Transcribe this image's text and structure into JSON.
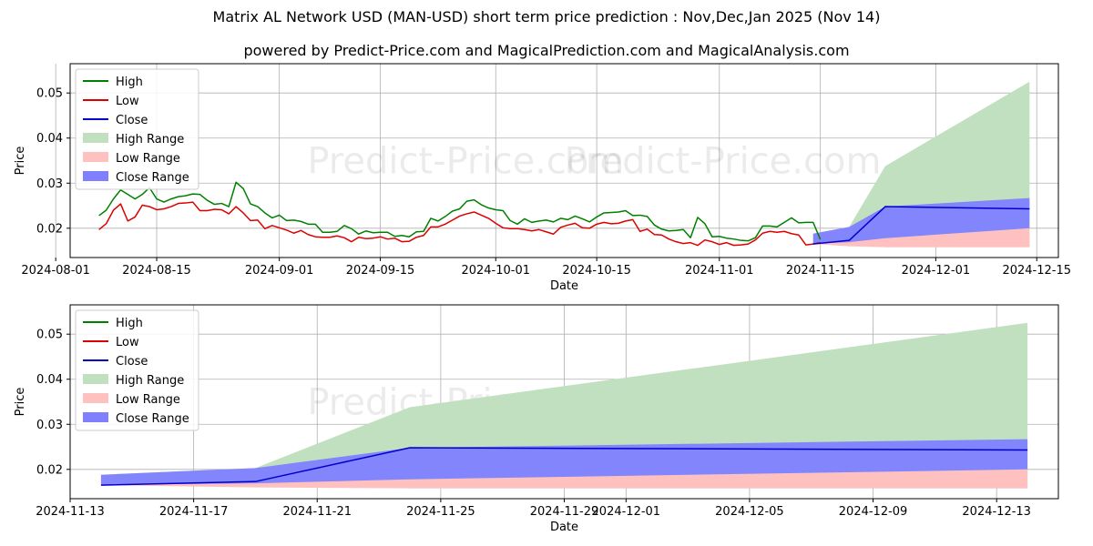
{
  "title": "Matrix AL Network USD (MAN-USD) short term price prediction : Nov,Dec,Jan 2025 (Nov 14)",
  "subtitle": "powered by Predict-Price.com and MagicalPrediction.com and MagicalAnalysis.com",
  "watermark": "Predict-Price.com",
  "colors": {
    "high": "#008000",
    "low": "#dd0000",
    "close": "#0000cc",
    "high_range": "#c0e0c0",
    "low_range": "#ffc0c0",
    "close_range": "#8080ff"
  },
  "chart_data": [
    {
      "type": "line",
      "xlabel": "Date",
      "ylabel": "Price",
      "x_range": [
        "2024-08-03",
        "2024-12-18"
      ],
      "ylim": [
        0.0135,
        0.0565
      ],
      "x_ticks": [
        "2024-08-01",
        "2024-08-15",
        "2024-09-01",
        "2024-09-15",
        "2024-10-01",
        "2024-10-15",
        "2024-11-01",
        "2024-11-15",
        "2024-12-01",
        "2024-12-15"
      ],
      "y_ticks": [
        0.02,
        0.03,
        0.04,
        0.05
      ],
      "y_tick_labels": [
        "0.02",
        "0.03",
        "0.04",
        "0.05"
      ],
      "grid": true,
      "legend": [
        "High",
        "Low",
        "Close",
        "High Range",
        "Low Range",
        "Close Range"
      ],
      "legend_location": "top-left",
      "history_start": "2024-08-07",
      "high": [
        0.0228,
        0.024,
        0.0265,
        0.0285,
        0.0275,
        0.0265,
        0.0275,
        0.029,
        0.0265,
        0.0258,
        0.0265,
        0.027,
        0.0272,
        0.0276,
        0.0275,
        0.0262,
        0.0253,
        0.0255,
        0.0248,
        0.0302,
        0.0288,
        0.0254,
        0.0248,
        0.0234,
        0.0223,
        0.0229,
        0.0217,
        0.0218,
        0.0215,
        0.0209,
        0.0209,
        0.0191,
        0.0191,
        0.0193,
        0.0206,
        0.0199,
        0.0187,
        0.0194,
        0.019,
        0.0191,
        0.0191,
        0.0182,
        0.0184,
        0.0181,
        0.0192,
        0.0193,
        0.0222,
        0.0216,
        0.0226,
        0.0238,
        0.0243,
        0.026,
        0.0263,
        0.0252,
        0.0245,
        0.0241,
        0.0239,
        0.0217,
        0.0209,
        0.0221,
        0.0213,
        0.0216,
        0.0218,
        0.0214,
        0.0222,
        0.0219,
        0.0227,
        0.0221,
        0.0214,
        0.0225,
        0.0234,
        0.0235,
        0.0236,
        0.0239,
        0.0228,
        0.0229,
        0.0226,
        0.0207,
        0.0198,
        0.0194,
        0.0195,
        0.0197,
        0.0179,
        0.0224,
        0.021,
        0.0181,
        0.0182,
        0.0178,
        0.0176,
        0.0173,
        0.0172,
        0.0179,
        0.0205,
        0.0205,
        0.0203,
        0.0213,
        0.0223,
        0.0212,
        0.0213,
        0.0213,
        0.0175
      ],
      "low": [
        0.0197,
        0.021,
        0.024,
        0.0254,
        0.0216,
        0.0225,
        0.0251,
        0.0248,
        0.0241,
        0.0243,
        0.0248,
        0.0255,
        0.0256,
        0.0258,
        0.0239,
        0.0239,
        0.0242,
        0.0241,
        0.0232,
        0.0248,
        0.0234,
        0.0217,
        0.0218,
        0.0199,
        0.0206,
        0.0201,
        0.0196,
        0.0189,
        0.0195,
        0.0186,
        0.0181,
        0.018,
        0.018,
        0.0183,
        0.0179,
        0.017,
        0.018,
        0.0177,
        0.0178,
        0.0181,
        0.0176,
        0.0178,
        0.017,
        0.0171,
        0.018,
        0.0184,
        0.0203,
        0.0203,
        0.0209,
        0.0218,
        0.0227,
        0.0232,
        0.0236,
        0.0229,
        0.0222,
        0.0211,
        0.0201,
        0.0199,
        0.0199,
        0.0197,
        0.0194,
        0.0197,
        0.0192,
        0.0187,
        0.0202,
        0.0207,
        0.0211,
        0.0201,
        0.02,
        0.0209,
        0.0213,
        0.021,
        0.0211,
        0.0216,
        0.0219,
        0.0193,
        0.0198,
        0.0186,
        0.0185,
        0.0176,
        0.017,
        0.0166,
        0.0168,
        0.0162,
        0.0174,
        0.017,
        0.0164,
        0.0168,
        0.0162,
        0.0163,
        0.0165,
        0.0174,
        0.0189,
        0.0193,
        0.0191,
        0.0193,
        0.0188,
        0.0185,
        0.0163,
        0.0165,
        0.0168
      ],
      "close_history_dates": [
        "2024-11-14",
        "2024-11-19",
        "2024-11-24",
        "2024-12-14"
      ],
      "close_history": [
        0.0165,
        0.0173,
        0.0248,
        0.0243
      ]
    },
    {
      "type": "area",
      "xlabel": "Date",
      "ylabel": "Price",
      "x_range": [
        "2024-11-13",
        "2024-12-15"
      ],
      "ylim": [
        0.0135,
        0.0565
      ],
      "x_ticks": [
        "2024-11-13",
        "2024-11-17",
        "2024-11-21",
        "2024-11-25",
        "2024-11-29",
        "2024-12-01",
        "2024-12-05",
        "2024-12-09",
        "2024-12-13"
      ],
      "y_ticks": [
        0.02,
        0.03,
        0.04,
        0.05
      ],
      "y_tick_labels": [
        "0.02",
        "0.03",
        "0.04",
        "0.05"
      ],
      "grid": true,
      "legend": [
        "High",
        "Low",
        "Close",
        "High Range",
        "Low Range",
        "Close Range"
      ],
      "legend_location": "top-left",
      "dates": [
        "2024-11-14",
        "2024-11-19",
        "2024-11-24",
        "2024-12-14"
      ],
      "high_range": {
        "upper": [
          0.0188,
          0.0203,
          0.0338,
          0.0525
        ],
        "lower": [
          0.0168,
          0.0168,
          0.0158,
          0.0158
        ]
      },
      "low_range": {
        "upper": [
          0.0168,
          0.0172,
          0.0178,
          0.02
        ],
        "lower": [
          0.0165,
          0.016,
          0.0158,
          0.0158
        ]
      },
      "close_range": {
        "upper": [
          0.0188,
          0.0203,
          0.0248,
          0.0267
        ],
        "lower": [
          0.0166,
          0.0169,
          0.0178,
          0.02
        ]
      },
      "close": [
        0.0165,
        0.0173,
        0.0248,
        0.0243
      ]
    }
  ]
}
